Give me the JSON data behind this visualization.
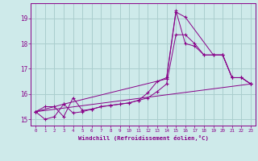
{
  "background_color": "#ceeaea",
  "grid_color": "#aacece",
  "line_color": "#880088",
  "marker": "+",
  "xlabel": "Windchill (Refroidissement éolien,°C)",
  "xlabel_color": "#880088",
  "tick_color": "#880088",
  "xlim": [
    -0.5,
    23.5
  ],
  "ylim": [
    14.75,
    19.6
  ],
  "yticks": [
    15,
    16,
    17,
    18,
    19
  ],
  "xticks": [
    0,
    1,
    2,
    3,
    4,
    5,
    6,
    7,
    8,
    9,
    10,
    11,
    12,
    13,
    14,
    15,
    16,
    17,
    18,
    19,
    20,
    21,
    22,
    23
  ],
  "series": [
    {
      "x": [
        0,
        1,
        2,
        3,
        4,
        5,
        6,
        7,
        8,
        9,
        10,
        11,
        12,
        13,
        14,
        15,
        16,
        17,
        18,
        19,
        20,
        21,
        22,
        23
      ],
      "y": [
        15.3,
        15.5,
        15.5,
        15.1,
        15.85,
        15.35,
        15.4,
        15.5,
        15.55,
        15.6,
        15.65,
        15.75,
        16.05,
        16.5,
        16.65,
        19.3,
        18.0,
        17.9,
        17.55,
        17.55,
        17.55,
        16.65,
        16.65,
        16.4
      ]
    },
    {
      "x": [
        0,
        1,
        2,
        3,
        4,
        5,
        6,
        7,
        8,
        9,
        10,
        11,
        12,
        13,
        14,
        15,
        16,
        17,
        18,
        19,
        20,
        21,
        22,
        23
      ],
      "y": [
        15.3,
        15.0,
        15.1,
        15.6,
        15.25,
        15.3,
        15.4,
        15.5,
        15.55,
        15.6,
        15.65,
        15.75,
        15.85,
        16.1,
        16.4,
        18.35,
        18.35,
        18.0,
        17.55,
        17.55,
        17.55,
        16.65,
        16.65,
        16.4
      ]
    },
    {
      "x": [
        0,
        3,
        14,
        15,
        16,
        19,
        20,
        21,
        22,
        23
      ],
      "y": [
        15.3,
        15.6,
        16.6,
        19.25,
        19.05,
        17.55,
        17.55,
        16.65,
        16.65,
        16.4
      ]
    },
    {
      "x": [
        0,
        23
      ],
      "y": [
        15.3,
        16.4
      ]
    }
  ]
}
